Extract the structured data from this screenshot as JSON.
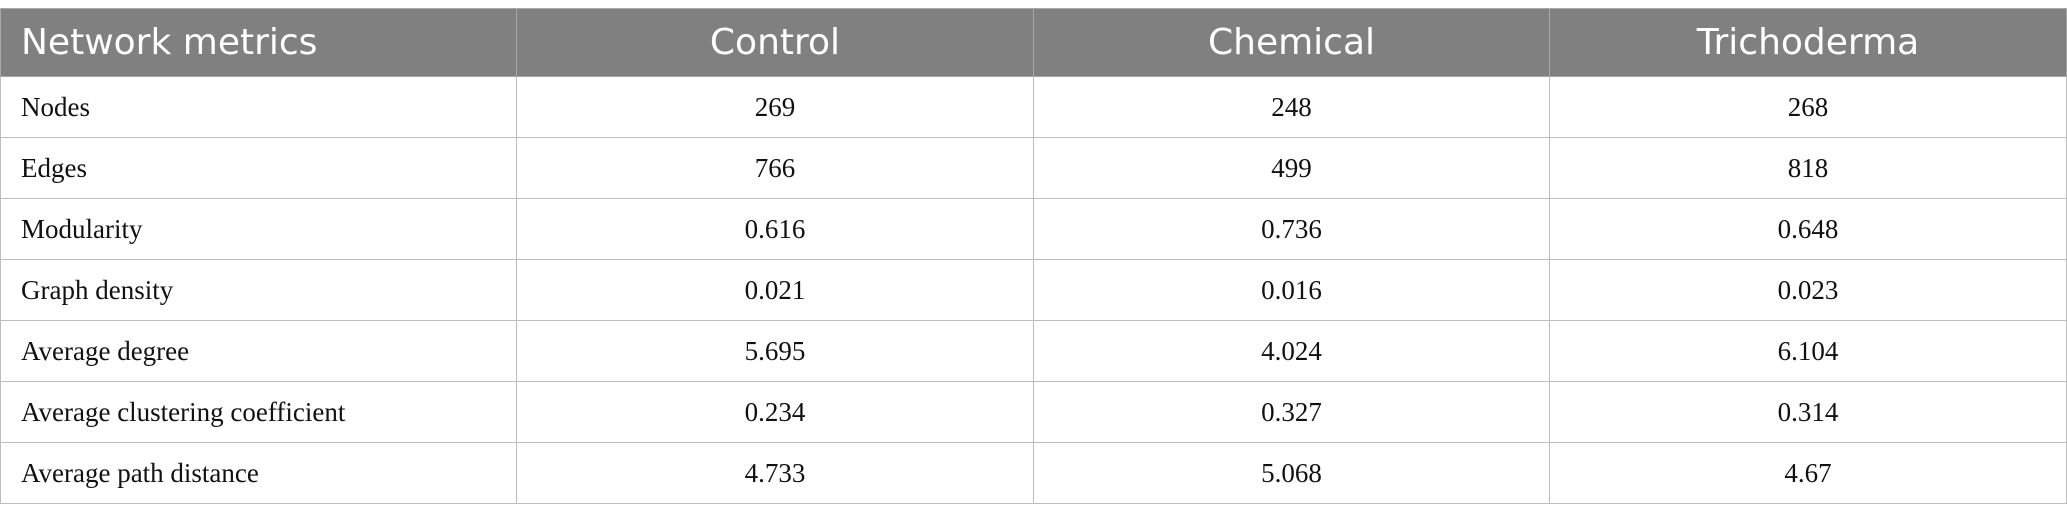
{
  "table": {
    "columns": [
      "Network metrics",
      "Control",
      "Chemical",
      "Trichoderma"
    ],
    "rows": [
      [
        "Nodes",
        "269",
        "248",
        "268"
      ],
      [
        "Edges",
        "766",
        "499",
        "818"
      ],
      [
        "Modularity",
        "0.616",
        "0.736",
        "0.648"
      ],
      [
        "Graph density",
        "0.021",
        "0.016",
        "0.023"
      ],
      [
        "Average degree",
        "5.695",
        "4.024",
        "6.104"
      ],
      [
        "Average clustering coefficient",
        "0.234",
        "0.327",
        "0.314"
      ],
      [
        "Average path distance",
        "4.733",
        "5.068",
        "4.67"
      ]
    ]
  },
  "colors": {
    "header_bg": "#808080",
    "header_text": "#ffffff",
    "border": "#bdbdbd"
  }
}
